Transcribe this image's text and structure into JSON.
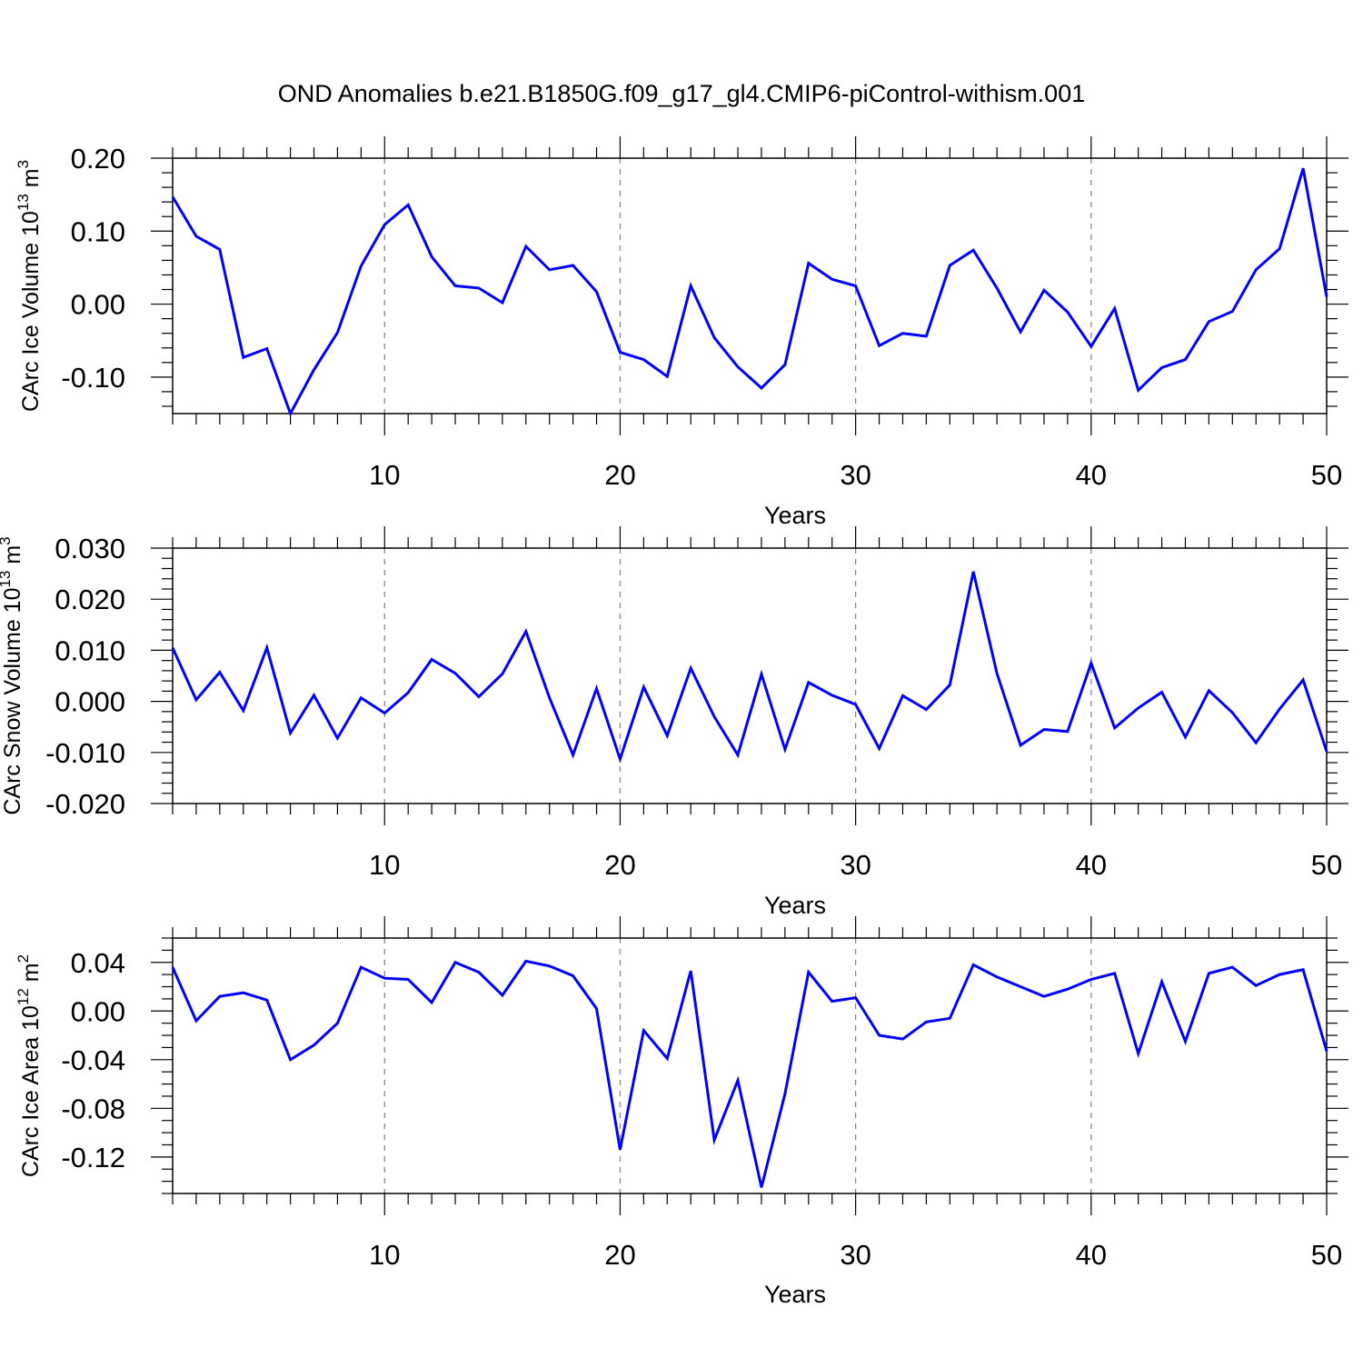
{
  "title": "OND Anomalies b.e21.B1850G.f09_g17_gl4.CMIP6-piControl-withism.001",
  "colors": {
    "line": "#0000ff",
    "axis": "#000000",
    "grid": "#808080"
  },
  "chart_data": [
    {
      "type": "line",
      "xlabel": "Years",
      "ylabel": {
        "text": "CArc Ice Volume 10",
        "exp": "13",
        "unit": " m",
        "unit_exp": "3"
      },
      "xlim": [
        1,
        50
      ],
      "ylim": [
        -0.15,
        0.2
      ],
      "x_ticks": [
        10,
        20,
        30,
        40,
        50
      ],
      "x_tick_labels": [
        "10",
        "20",
        "30",
        "40",
        "50"
      ],
      "y_ticks": [
        0.2,
        0.1,
        0.0,
        -0.1
      ],
      "y_tick_labels": [
        "0.20",
        "0.10",
        "0.00",
        "-0.10"
      ],
      "y_minor_step": 0.02,
      "grid": "vertical dashed at major x ticks",
      "series": [
        {
          "x": [
            1,
            2,
            3,
            4,
            5,
            6,
            7,
            8,
            9,
            10,
            11,
            12,
            13,
            14,
            15,
            16,
            17,
            18,
            19,
            20,
            21,
            22,
            23,
            24,
            25,
            26,
            27,
            28,
            29,
            30,
            31,
            32,
            33,
            34,
            35,
            36,
            37,
            38,
            39,
            40,
            41,
            42,
            43,
            44,
            45,
            46,
            47,
            48,
            49,
            50
          ],
          "values": [
            0.147,
            0.093,
            0.075,
            -0.073,
            -0.061,
            -0.15,
            -0.09,
            -0.039,
            0.052,
            0.109,
            0.136,
            0.065,
            0.025,
            0.022,
            0.002,
            0.079,
            0.047,
            0.053,
            0.017,
            -0.066,
            -0.076,
            -0.099,
            0.025,
            -0.046,
            -0.086,
            -0.115,
            -0.083,
            0.056,
            0.034,
            0.025,
            -0.057,
            -0.04,
            -0.044,
            0.053,
            0.074,
            0.022,
            -0.038,
            0.019,
            -0.011,
            -0.058,
            -0.006,
            -0.118,
            -0.087,
            -0.076,
            -0.024,
            -0.01,
            0.047,
            0.076,
            0.186,
            0.01
          ]
        }
      ]
    },
    {
      "type": "line",
      "xlabel": "Years",
      "ylabel": {
        "text": "CArc Snow Volume 10",
        "exp": "13",
        "unit": " m",
        "unit_exp": "3"
      },
      "xlim": [
        1,
        50
      ],
      "ylim": [
        -0.02,
        0.03
      ],
      "x_ticks": [
        10,
        20,
        30,
        40,
        50
      ],
      "x_tick_labels": [
        "10",
        "20",
        "30",
        "40",
        "50"
      ],
      "y_ticks": [
        0.03,
        0.02,
        0.01,
        0.0,
        -0.01,
        -0.02
      ],
      "y_tick_labels": [
        "0.030",
        "0.020",
        "0.010",
        "0.000",
        "-0.010",
        "-0.020"
      ],
      "y_minor_step": 0.002,
      "grid": "vertical dashed at major x ticks",
      "series": [
        {
          "x": [
            1,
            2,
            3,
            4,
            5,
            6,
            7,
            8,
            9,
            10,
            11,
            12,
            13,
            14,
            15,
            16,
            17,
            18,
            19,
            20,
            21,
            22,
            23,
            24,
            25,
            26,
            27,
            28,
            29,
            30,
            31,
            32,
            33,
            34,
            35,
            36,
            37,
            38,
            39,
            40,
            41,
            42,
            43,
            44,
            45,
            46,
            47,
            48,
            49,
            50
          ],
          "values": [
            0.0105,
            0.0003,
            0.0057,
            -0.0018,
            0.0105,
            -0.0062,
            0.0012,
            -0.0072,
            0.0007,
            -0.0023,
            0.0017,
            0.0082,
            0.0055,
            0.0009,
            0.0054,
            0.0137,
            0.0007,
            -0.0105,
            0.0025,
            -0.0113,
            0.0028,
            -0.0067,
            0.0065,
            -0.003,
            -0.0105,
            0.0053,
            -0.0094,
            0.0037,
            0.0012,
            -0.0006,
            -0.0092,
            0.0011,
            -0.0016,
            0.0032,
            0.0254,
            0.0055,
            -0.0086,
            -0.0055,
            -0.0059,
            0.0075,
            -0.0052,
            -0.0013,
            0.0018,
            -0.007,
            0.0021,
            -0.0022,
            -0.0081,
            -0.0015,
            0.0042,
            -0.0098
          ]
        }
      ]
    },
    {
      "type": "line",
      "xlabel": "Years",
      "ylabel": {
        "text": "CArc Ice Area 10",
        "exp": "12",
        "unit": " m",
        "unit_exp": "2"
      },
      "xlim": [
        1,
        50
      ],
      "ylim": [
        -0.15,
        0.06
      ],
      "x_ticks": [
        10,
        20,
        30,
        40,
        50
      ],
      "x_tick_labels": [
        "10",
        "20",
        "30",
        "40",
        "50"
      ],
      "y_ticks": [
        0.04,
        0.0,
        -0.04,
        -0.08,
        -0.12
      ],
      "y_tick_labels": [
        "0.04",
        "0.00",
        "-0.04",
        "-0.08",
        "-0.12"
      ],
      "y_minor_step": 0.01,
      "grid": "vertical dashed at major x ticks",
      "series": [
        {
          "x": [
            1,
            2,
            3,
            4,
            5,
            6,
            7,
            8,
            9,
            10,
            11,
            12,
            13,
            14,
            15,
            16,
            17,
            18,
            19,
            20,
            21,
            22,
            23,
            24,
            25,
            26,
            27,
            28,
            29,
            30,
            31,
            32,
            33,
            34,
            35,
            36,
            37,
            38,
            39,
            40,
            41,
            42,
            43,
            44,
            45,
            46,
            47,
            48,
            49,
            50
          ],
          "values": [
            0.036,
            -0.008,
            0.012,
            0.015,
            0.009,
            -0.04,
            -0.028,
            -0.01,
            0.036,
            0.027,
            0.026,
            0.007,
            0.04,
            0.032,
            0.013,
            0.041,
            0.037,
            0.029,
            0.002,
            -0.114,
            -0.016,
            -0.039,
            0.033,
            -0.106,
            -0.057,
            -0.145,
            -0.068,
            0.032,
            0.008,
            0.011,
            -0.02,
            -0.023,
            -0.009,
            -0.006,
            0.038,
            0.028,
            0.02,
            0.012,
            0.018,
            0.026,
            0.031,
            -0.035,
            0.024,
            -0.025,
            0.031,
            0.036,
            0.021,
            0.03,
            0.034,
            -0.033
          ]
        }
      ]
    }
  ]
}
